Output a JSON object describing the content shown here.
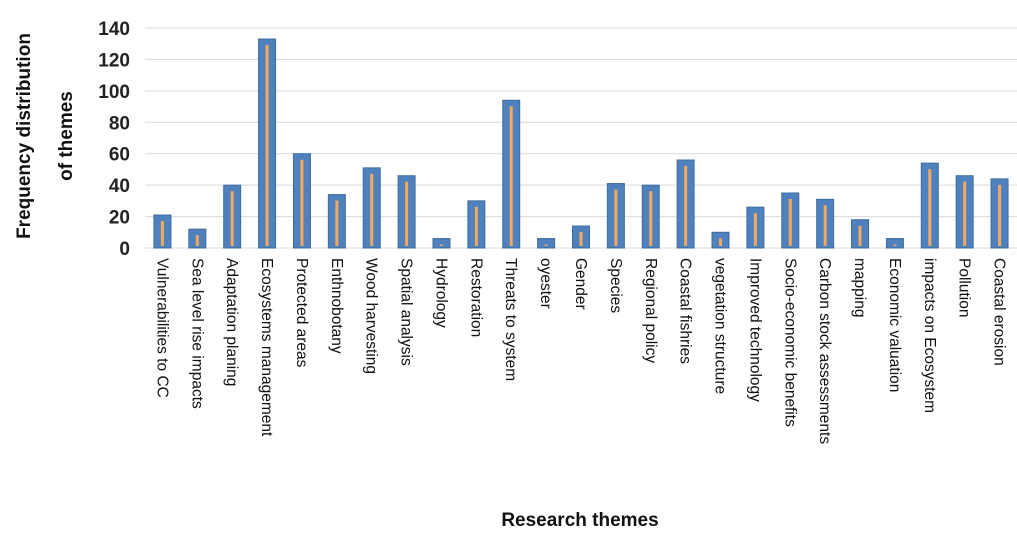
{
  "chart_data": {
    "type": "bar",
    "title": "",
    "xlabel": "Research themes",
    "ylabel_lines": [
      "Frequency distribution",
      "of themes"
    ],
    "ylim": [
      0,
      140
    ],
    "yticks": [
      0,
      20,
      40,
      60,
      80,
      100,
      120,
      140
    ],
    "grid": true,
    "categories": [
      "Vulnerabilities to CC",
      "Sea level rise impacts",
      "Adaptation planing",
      "Ecosystems management",
      "Protected areas",
      "Enthnobotany",
      "Wood harvesting",
      "Spatial analysis",
      "Hydrology",
      "Restoration",
      "Threats to system",
      "oyester",
      "Gender",
      "Species",
      "Regional policy",
      "Coastal fishries",
      "vegetation structure",
      "Improved technology",
      "Socio-economic benefits",
      "Carbon stock assessments",
      "mapping",
      "Economic valuation",
      "impacts on Ecosystem",
      "Pollution",
      "Coastal erosion"
    ],
    "values": [
      21,
      12,
      40,
      133,
      60,
      34,
      51,
      46,
      6,
      30,
      94,
      6,
      14,
      41,
      40,
      56,
      10,
      26,
      35,
      31,
      18,
      6,
      54,
      46,
      44
    ],
    "colors": {
      "bar": "#4F81BD",
      "bar_edge": "#3E6C9E",
      "inner": "#F4A860",
      "grid": "#D9D9D9"
    }
  }
}
